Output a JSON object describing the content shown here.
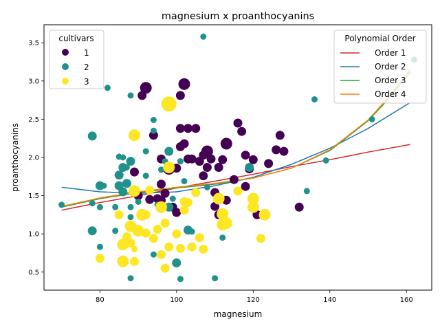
{
  "chart_data": {
    "type": "scatter",
    "title": "magnesium x proanthocyanins",
    "xlabel": "magnesium",
    "ylabel": "proanthocyanins",
    "xlim": [
      65.4,
      166.6
    ],
    "ylim": [
      0.264,
      3.736
    ],
    "xticks": [
      80,
      100,
      120,
      140,
      160
    ],
    "yticks": [
      0.5,
      1.0,
      1.5,
      2.0,
      2.5,
      3.0,
      3.5
    ],
    "xtick_labels": [
      "80",
      "100",
      "120",
      "140",
      "160"
    ],
    "ytick_labels": [
      "0.5",
      "1.0",
      "1.5",
      "2.0",
      "2.5",
      "3.0",
      "3.5"
    ],
    "grid": false,
    "cultivar_legend": {
      "title": "cultivars",
      "position": "top-left",
      "entries": [
        {
          "label": "1",
          "color": "#440154"
        },
        {
          "label": "2",
          "color": "#21918c"
        },
        {
          "label": "3",
          "color": "#fde725"
        }
      ]
    },
    "fit_legend": {
      "title": "Polynomial Order",
      "position": "top-right",
      "entries": [
        {
          "label": "Order 1",
          "color": "#d62728"
        },
        {
          "label": "Order 2",
          "color": "#1f77b4"
        },
        {
          "label": "Order 3",
          "color": "#2ca02c"
        },
        {
          "label": "Order 4",
          "color": "#ff7f0e"
        }
      ]
    },
    "series": [
      {
        "name": "1",
        "color": "#440154",
        "points": [
          [
            89,
            1.81,
            1
          ],
          [
            90,
            1.5,
            1
          ],
          [
            91,
            2.81,
            1
          ],
          [
            92,
            2.91,
            2
          ],
          [
            93,
            1.45,
            1
          ],
          [
            94,
            2.29,
            1
          ],
          [
            95,
            1.46,
            1
          ],
          [
            96,
            1.98,
            1
          ],
          [
            96,
            1.65,
            1
          ],
          [
            97,
            1.53,
            1
          ],
          [
            98,
            1.85,
            2
          ],
          [
            99,
            1.35,
            1
          ],
          [
            100,
            1.28,
            1
          ],
          [
            100,
            1.86,
            1
          ],
          [
            101,
            2.81,
            1
          ],
          [
            101,
            2.14,
            1
          ],
          [
            101,
            2.38,
            1
          ],
          [
            102,
            2.96,
            2
          ],
          [
            102,
            2.18,
            1
          ],
          [
            103,
            2.38,
            1
          ],
          [
            103,
            1.98,
            1
          ],
          [
            104,
            1.98,
            1
          ],
          [
            105,
            2.38,
            1
          ],
          [
            106,
            1.95,
            1
          ],
          [
            107,
            2.03,
            1
          ],
          [
            107,
            1.76,
            1
          ],
          [
            108,
            2.08,
            2
          ],
          [
            108,
            1.87,
            1
          ],
          [
            109,
            1.98,
            1
          ],
          [
            110,
            1.36,
            1
          ],
          [
            111,
            1.87,
            1
          ],
          [
            111,
            1.25,
            1
          ],
          [
            112,
            1.97,
            1
          ],
          [
            113,
            2.18,
            2
          ],
          [
            113,
            1.44,
            1
          ],
          [
            115,
            1.71,
            1
          ],
          [
            116,
            2.45,
            1
          ],
          [
            117,
            2.34,
            1
          ],
          [
            118,
            2.03,
            1
          ],
          [
            118,
            1.62,
            1
          ],
          [
            119,
            1.85,
            1
          ],
          [
            120,
            1.97,
            1
          ],
          [
            121,
            1.25,
            1
          ],
          [
            124,
            1.92,
            1
          ],
          [
            126,
            2.1,
            1
          ],
          [
            127,
            2.29,
            1
          ],
          [
            128,
            2.08,
            1
          ],
          [
            132,
            1.35,
            1
          ],
          [
            96,
            1.44,
            1
          ],
          [
            110,
            1.54,
            1
          ]
        ]
      },
      {
        "name": "2",
        "color": "#21918c",
        "points": [
          [
            70,
            1.38,
            0
          ],
          [
            78,
            2.28,
            1
          ],
          [
            78,
            1.04,
            1
          ],
          [
            78,
            1.4,
            0
          ],
          [
            80,
            1.63,
            1
          ],
          [
            80,
            1.35,
            0
          ],
          [
            80,
            0.83,
            0
          ],
          [
            81,
            1.63,
            0
          ],
          [
            82,
            2.91,
            0
          ],
          [
            84,
            1.35,
            0
          ],
          [
            84,
            1.04,
            0
          ],
          [
            85,
            2.01,
            0
          ],
          [
            85,
            1.63,
            1
          ],
          [
            85,
            1.77,
            1
          ],
          [
            86,
            1.87,
            1
          ],
          [
            86,
            2.0,
            0
          ],
          [
            86,
            1.55,
            1
          ],
          [
            87,
            1.66,
            1
          ],
          [
            87,
            1.87,
            0
          ],
          [
            88,
            2.81,
            0
          ],
          [
            88,
            1.95,
            1
          ],
          [
            88,
            1.35,
            0
          ],
          [
            88,
            1.22,
            0
          ],
          [
            88,
            0.42,
            0
          ],
          [
            89,
            1.56,
            1
          ],
          [
            90,
            1.42,
            0
          ],
          [
            92,
            2.08,
            0
          ],
          [
            92,
            1.76,
            0
          ],
          [
            94,
            2.49,
            0
          ],
          [
            94,
            2.35,
            0
          ],
          [
            94,
            0.73,
            0
          ],
          [
            95,
            1.38,
            0
          ],
          [
            96,
            1.84,
            0
          ],
          [
            97,
            1.95,
            0
          ],
          [
            98,
            2.08,
            1
          ],
          [
            98,
            1.35,
            1
          ],
          [
            99,
            1.46,
            0
          ],
          [
            100,
            0.62,
            1
          ],
          [
            101,
            1.95,
            0
          ],
          [
            101,
            0.41,
            0
          ],
          [
            102,
            1.69,
            0
          ],
          [
            103,
            1.05,
            1
          ],
          [
            104,
            1.03,
            0
          ],
          [
            107,
            3.58,
            0
          ],
          [
            108,
            1.61,
            0
          ],
          [
            110,
            0.42,
            0
          ],
          [
            112,
            0.95,
            0
          ],
          [
            119,
            1.87,
            1
          ],
          [
            134,
            1.56,
            0
          ],
          [
            136,
            2.76,
            0
          ],
          [
            139,
            1.96,
            0
          ],
          [
            151,
            2.5,
            0
          ],
          [
            162,
            3.28,
            0
          ]
        ]
      },
      {
        "name": "3",
        "color": "#fde725",
        "points": [
          [
            80,
            0.68,
            1
          ],
          [
            85,
            1.25,
            1
          ],
          [
            86,
            0.86,
            2
          ],
          [
            86,
            0.64,
            2
          ],
          [
            87,
            0.96,
            1
          ],
          [
            88,
            1.1,
            2
          ],
          [
            88,
            0.88,
            1
          ],
          [
            89,
            2.29,
            2
          ],
          [
            89,
            1.56,
            2
          ],
          [
            89,
            0.8,
            0
          ],
          [
            89,
            0.64,
            1
          ],
          [
            90,
            1.04,
            2
          ],
          [
            91,
            1.25,
            2
          ],
          [
            92,
            1.25,
            1
          ],
          [
            92,
            1.01,
            1
          ],
          [
            93,
            1.57,
            1
          ],
          [
            94,
            0.94,
            1
          ],
          [
            95,
            1.06,
            1
          ],
          [
            96,
            1.35,
            2
          ],
          [
            96,
            0.73,
            1
          ],
          [
            97,
            1.14,
            1
          ],
          [
            97,
            0.55,
            1
          ],
          [
            98,
            2.7,
            3
          ],
          [
            98,
            1.87,
            2
          ],
          [
            98,
            0.83,
            1
          ],
          [
            100,
            1.0,
            1
          ],
          [
            101,
            0.81,
            1
          ],
          [
            102,
            1.31,
            1
          ],
          [
            102,
            1.42,
            1
          ],
          [
            103,
            1.41,
            1
          ],
          [
            104,
            0.83,
            1
          ],
          [
            105,
            1.54,
            1
          ],
          [
            106,
            0.95,
            1
          ],
          [
            107,
            0.8,
            1
          ],
          [
            111,
            1.46,
            2
          ],
          [
            112,
            1.26,
            2
          ],
          [
            112,
            1.12,
            2
          ],
          [
            113,
            1.14,
            2
          ],
          [
            116,
            1.56,
            1
          ],
          [
            120,
            1.46,
            2
          ],
          [
            120,
            1.35,
            2
          ],
          [
            122,
            0.94,
            1
          ],
          [
            123,
            1.25,
            2
          ]
        ]
      }
    ],
    "fits": [
      {
        "name": "Order 1",
        "color": "#d62728",
        "x": [
          70,
          80,
          90,
          100,
          110,
          120,
          130,
          140,
          150,
          161
        ],
        "y": [
          1.31,
          1.41,
          1.5,
          1.6,
          1.69,
          1.78,
          1.88,
          1.97,
          2.07,
          2.17
        ]
      },
      {
        "name": "Order 2",
        "color": "#1f77b4",
        "x": [
          70,
          80,
          90,
          100,
          110,
          120,
          130,
          140,
          150,
          161
        ],
        "y": [
          1.61,
          1.55,
          1.53,
          1.55,
          1.63,
          1.74,
          1.91,
          2.12,
          2.38,
          2.72
        ]
      },
      {
        "name": "Order 3",
        "color": "#2ca02c",
        "x": [
          70,
          80,
          90,
          100,
          110,
          120,
          130,
          140,
          150,
          155,
          161
        ],
        "y": [
          1.35,
          1.46,
          1.54,
          1.6,
          1.65,
          1.73,
          1.86,
          2.09,
          2.48,
          2.75,
          3.12
        ]
      },
      {
        "name": "Order 4",
        "color": "#ff7f0e",
        "x": [
          70,
          80,
          90,
          100,
          110,
          120,
          130,
          140,
          150,
          155,
          161
        ],
        "y": [
          1.36,
          1.47,
          1.55,
          1.61,
          1.66,
          1.73,
          1.86,
          2.1,
          2.49,
          2.77,
          3.15
        ]
      }
    ]
  }
}
